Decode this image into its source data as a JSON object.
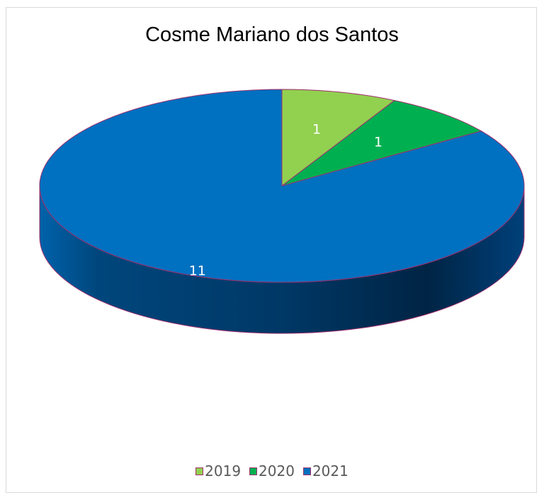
{
  "chart_data": {
    "type": "pie",
    "title": "Cosme Mariano dos Santos",
    "categories": [
      "2019",
      "2020",
      "2021"
    ],
    "values": [
      1,
      1,
      11
    ],
    "colors": [
      "#92d050",
      "#00b050",
      "#0070c0"
    ],
    "edge_color": "#a0306e",
    "data_labels": [
      "1",
      "1",
      "11"
    ],
    "style": "3d",
    "legend_position": "bottom"
  }
}
